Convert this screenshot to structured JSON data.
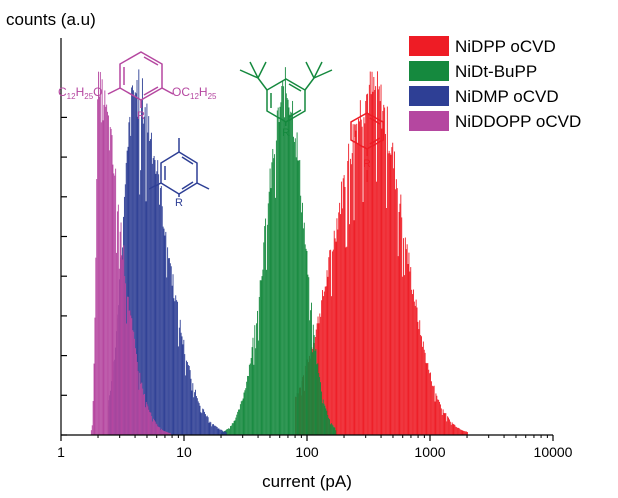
{
  "chart_data": {
    "type": "histogram",
    "xlabel": "current (pA)",
    "ylabel": "counts (a.u)",
    "xscale": "log",
    "xlim": [
      1,
      10000
    ],
    "x_ticks": [
      "1",
      "10",
      "100",
      "1000",
      "10000"
    ],
    "y_ticks_labeled": false,
    "ylim": [
      0,
      1
    ],
    "legend_position": "top-right",
    "series": [
      {
        "name": "NiDPP oCVD",
        "color": "#ee1c25",
        "peak_x": 340,
        "peak_y": 0.93,
        "log_sigma_left": 0.3,
        "log_sigma_right": 0.25,
        "x_range": [
          80,
          2000
        ]
      },
      {
        "name": "NiDt-BuPP",
        "color": "#15893e",
        "peak_x": 68,
        "peak_y": 0.93,
        "log_sigma_left": 0.17,
        "log_sigma_right": 0.14,
        "x_range": [
          20,
          170
        ]
      },
      {
        "name": "NiDMP oCVD",
        "color": "#2e3f95",
        "peak_x": 4,
        "peak_y": 0.93,
        "log_sigma_left": 0.1,
        "log_sigma_right": 0.24,
        "x_range": [
          2.4,
          22
        ]
      },
      {
        "name": "NiDDOPP oCVD",
        "color": "#b547a0",
        "peak_x": 2.0,
        "peak_y": 0.92,
        "log_sigma_left": 0.02,
        "log_sigma_right": 0.18,
        "x_range": [
          1.75,
          12
        ]
      }
    ],
    "annotations": {
      "ddopp_left": "C",
      "ddopp_left_sub": "12",
      "ddopp_left_h": "H",
      "ddopp_left_sub2": "25",
      "ddopp_left_o": "O",
      "ddopp_right": "OC",
      "ddopp_right_sub": "12",
      "ddopp_right_h": "H",
      "ddopp_right_sub2": "25",
      "r_label": "R"
    }
  }
}
